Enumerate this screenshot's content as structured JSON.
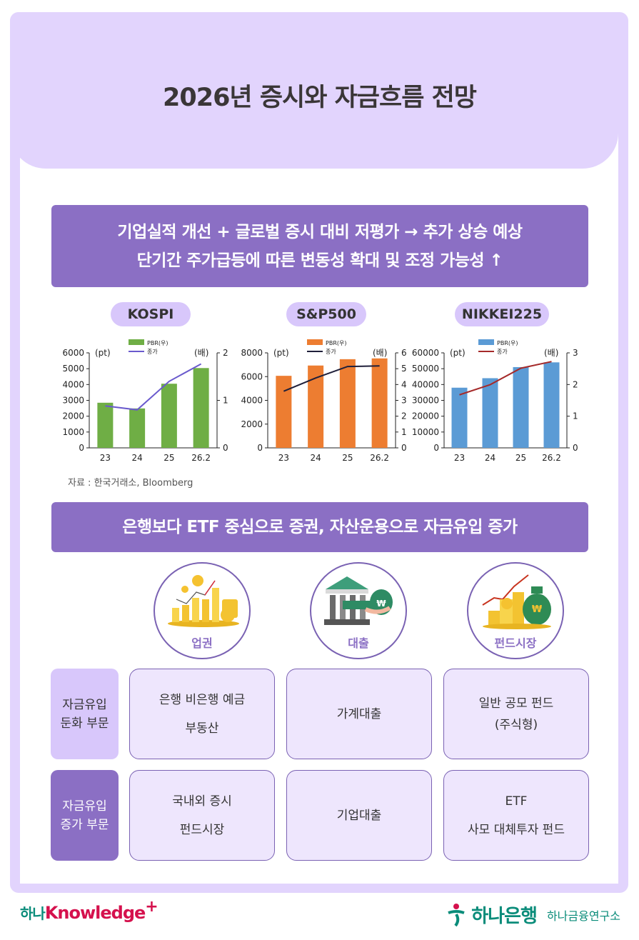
{
  "title": "2026년 증시와 자금흐름 전망",
  "banner1": {
    "line1": "기업실적 개선 + 글로벌 증시 대비 저평가 → 추가 상승 예상",
    "line2": "단기간 주가급등에 따른 변동성 확대 및 조정 가능성 ↑"
  },
  "charts_labels": {
    "legend_bar": "PBR(우)",
    "legend_line": "종가",
    "left_unit": "(pt)",
    "right_unit": "(배)"
  },
  "source": "자료 : 한국거래소, Bloomberg",
  "chart_data": [
    {
      "title": "KOSPI",
      "type": "bar",
      "categories": [
        "23",
        "24",
        "25",
        "26.2"
      ],
      "series": [
        {
          "name": "PBR(우)",
          "type": "bar",
          "axis": "right",
          "values": [
            0.95,
            0.83,
            1.35,
            1.68
          ],
          "color": "#6FAE45"
        },
        {
          "name": "종가",
          "type": "line",
          "axis": "left",
          "values": [
            2650,
            2400,
            4200,
            5300
          ],
          "color": "#6A5ACD"
        }
      ],
      "left_axis": {
        "unit": "(pt)",
        "ylim": [
          0,
          6000
        ],
        "ticks": [
          0,
          1000,
          2000,
          3000,
          4000,
          5000,
          6000
        ]
      },
      "right_axis": {
        "unit": "(배)",
        "ylim": [
          0,
          2
        ],
        "ticks": [
          0,
          1,
          2
        ]
      },
      "legend_position": "top"
    },
    {
      "title": "S&P500",
      "type": "bar",
      "categories": [
        "23",
        "24",
        "25",
        "26.2"
      ],
      "series": [
        {
          "name": "PBR(우)",
          "type": "bar",
          "axis": "right",
          "values": [
            4.55,
            5.2,
            5.6,
            5.65
          ],
          "color": "#ED7D31"
        },
        {
          "name": "종가",
          "type": "line",
          "axis": "left",
          "values": [
            4770,
            5880,
            6850,
            6900
          ],
          "color": "#1F1F3A"
        }
      ],
      "left_axis": {
        "unit": "(pt)",
        "ylim": [
          0,
          8000
        ],
        "ticks": [
          0,
          2000,
          4000,
          6000,
          8000
        ]
      },
      "right_axis": {
        "unit": "(배)",
        "ylim": [
          0,
          6
        ],
        "ticks": [
          0,
          1,
          2,
          3,
          4,
          5,
          6
        ]
      },
      "legend_position": "top"
    },
    {
      "title": "NIKKEI225",
      "type": "bar",
      "categories": [
        "23",
        "24",
        "25",
        "26.2"
      ],
      "series": [
        {
          "name": "PBR(우)",
          "type": "bar",
          "axis": "right",
          "values": [
            1.9,
            2.2,
            2.55,
            2.7
          ],
          "color": "#5B9BD5"
        },
        {
          "name": "종가",
          "type": "line",
          "axis": "left",
          "values": [
            33500,
            39900,
            50300,
            54500
          ],
          "color": "#A52A2A"
        }
      ],
      "left_axis": {
        "unit": "(pt)",
        "ylim": [
          0,
          60000
        ],
        "ticks": [
          0,
          10000,
          20000,
          30000,
          40000,
          50000,
          60000
        ]
      },
      "right_axis": {
        "unit": "(배)",
        "ylim": [
          0,
          3
        ],
        "ticks": [
          0,
          1,
          2,
          3
        ]
      },
      "legend_position": "top"
    }
  ],
  "banner2": "은행보다 ETF 중심으로 증권, 자산운용으로 자금유입 증가",
  "categories": [
    {
      "label": "업권",
      "icon": "rising-coins-chart-icon"
    },
    {
      "label": "대출",
      "icon": "bank-loan-icon"
    },
    {
      "label": "펀드시장",
      "icon": "money-bag-growth-icon"
    }
  ],
  "table": {
    "rows": [
      {
        "label": "자금유입\n둔화 부문",
        "cells": [
          "은행 비은행 예금\n부동산",
          "가계대출",
          "일반 공모 펀드\n(주식형)"
        ]
      },
      {
        "label": "자금유입\n증가 부문",
        "cells": [
          "국내외 증시\n펀드시장",
          "기업대출",
          "ETF\n사모 대체투자 펀드"
        ]
      }
    ]
  },
  "footer": {
    "left_brand_hana": "하나",
    "left_brand_knowledge": "Knowledge",
    "left_brand_plus": "+",
    "right_bank": "하나은행",
    "right_institute": "하나금융연구소"
  },
  "colors": {
    "frame": "#E2D4FD",
    "banner": "#8B6FC4",
    "pill": "#D8C7FB",
    "cell_bg": "#EEE6FD",
    "hana_green": "#0A8C7A",
    "knowledge_red": "#D5114D"
  }
}
